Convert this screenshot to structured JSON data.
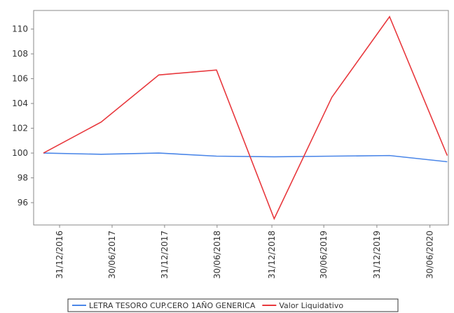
{
  "chart_data": {
    "type": "line",
    "x": [
      0,
      1,
      2,
      3,
      4,
      5,
      6,
      7
    ],
    "xlim": [
      -0.17,
      7.02
    ],
    "xticks": [
      {
        "value": 0.28,
        "label": "31/12/2016"
      },
      {
        "value": 1.19,
        "label": "30/06/2017"
      },
      {
        "value": 2.1,
        "label": "31/12/2017"
      },
      {
        "value": 3.01,
        "label": "30/06/2018"
      },
      {
        "value": 3.96,
        "label": "31/12/2018"
      },
      {
        "value": 4.86,
        "label": "30/06/2019"
      },
      {
        "value": 5.78,
        "label": "31/12/2019"
      },
      {
        "value": 6.7,
        "label": "30/06/2020"
      }
    ],
    "ylim": [
      94.2,
      111.5
    ],
    "yticks": [
      96,
      98,
      100,
      102,
      104,
      106,
      108,
      110
    ],
    "series": [
      {
        "name": "LETRA TESORO CUP.CERO 1AÑO GENERICA",
        "color": "#4a86e8",
        "values": [
          100,
          99.9,
          100,
          99.75,
          99.7,
          99.75,
          99.8,
          99.3
        ]
      },
      {
        "name": "Valor Liquidativo",
        "color": "#e8383d",
        "values": [
          100,
          102.5,
          106.3,
          106.7,
          94.7,
          104.5,
          111.0,
          99.8
        ]
      }
    ]
  }
}
